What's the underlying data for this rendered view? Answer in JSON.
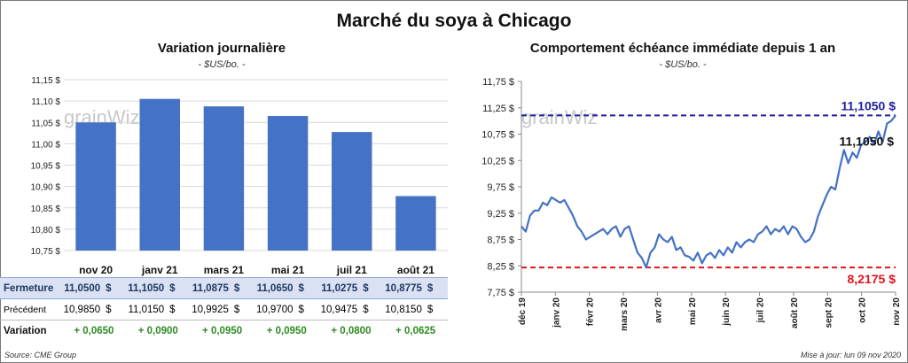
{
  "title": "Marché du soya à Chicago",
  "watermark": "grainWiz",
  "source": "Source: CME Group",
  "updated": "Mise à jour: lun 09 nov 2020",
  "colors": {
    "bar": "#4472c4",
    "line": "#4472c4",
    "high": "#1f1f9f",
    "low": "#e0141e",
    "positive": "#2e8b22"
  },
  "table": {
    "rows": [
      {
        "label": "Fermeture",
        "currency": "$",
        "values": [
          "11,0500",
          "11,1050",
          "11,0875",
          "11,0650",
          "11,0275",
          "10,8775"
        ]
      },
      {
        "label": "Précédent",
        "currency": "$",
        "values": [
          "10,9850",
          "11,0150",
          "10,9925",
          "10,9700",
          "10,9475",
          "10,8150"
        ]
      },
      {
        "label": "Variation",
        "values": [
          "+ 0,0650",
          "+ 0,0900",
          "+ 0,0950",
          "+ 0,0950",
          "+ 0,0800",
          "+ 0,0625"
        ]
      }
    ]
  },
  "chart_data": [
    {
      "type": "bar",
      "title": "Variation journalière",
      "unit": "- $US/bo. -",
      "categories": [
        "nov 20",
        "janv 21",
        "mars 21",
        "mai 21",
        "juil 21",
        "août 21"
      ],
      "values": [
        11.05,
        11.105,
        11.0875,
        11.065,
        11.0275,
        10.8775
      ],
      "ylim": [
        10.75,
        11.15
      ],
      "yticks": [
        10.75,
        10.8,
        10.85,
        10.9,
        10.95,
        11.0,
        11.05,
        11.1,
        11.15
      ],
      "ytick_labels": [
        "10,75 $",
        "10,80 $",
        "10,85 $",
        "10,90 $",
        "10,95 $",
        "11,00 $",
        "11,05 $",
        "11,10 $",
        "11,15 $"
      ]
    },
    {
      "type": "line",
      "title": "Comportement  échéance immédiate depuis 1 an",
      "unit": "- $US/bo. -",
      "ylim": [
        7.75,
        11.75
      ],
      "yticks": [
        7.75,
        8.25,
        8.75,
        9.25,
        9.75,
        10.25,
        10.75,
        11.25,
        11.75
      ],
      "ytick_labels": [
        "7,75 $",
        "8,25 $",
        "8,75 $",
        "9,25 $",
        "9,75 $",
        "10,25 $",
        "10,75 $",
        "11,25 $",
        "11,75 $"
      ],
      "x_labels": [
        "déc 19",
        "janv 20",
        "févr 20",
        "mars 20",
        "avr 20",
        "mai 20",
        "juin 20",
        "juil 20",
        "août 20",
        "sept 20",
        "oct 20",
        "nov 20"
      ],
      "high": {
        "value": 11.105,
        "label": "11,1050 $"
      },
      "low": {
        "value": 8.2175,
        "label": "8,2175 $"
      },
      "last_label": "11,1050 $",
      "series": [
        {
          "name": "Échéance immédiate",
          "values": [
            9.0,
            8.9,
            9.2,
            9.3,
            9.3,
            9.45,
            9.4,
            9.55,
            9.5,
            9.45,
            9.5,
            9.35,
            9.2,
            9.0,
            8.9,
            8.75,
            8.8,
            8.85,
            8.9,
            8.95,
            8.85,
            8.95,
            9.0,
            8.8,
            8.95,
            9.0,
            8.75,
            8.5,
            8.4,
            8.22,
            8.5,
            8.6,
            8.85,
            8.75,
            8.7,
            8.8,
            8.55,
            8.6,
            8.45,
            8.42,
            8.35,
            8.5,
            8.3,
            8.45,
            8.5,
            8.4,
            8.55,
            8.45,
            8.6,
            8.5,
            8.7,
            8.6,
            8.7,
            8.75,
            8.7,
            8.85,
            8.9,
            9.0,
            8.85,
            8.95,
            8.9,
            9.0,
            8.85,
            9.0,
            8.95,
            8.8,
            8.7,
            8.75,
            8.9,
            9.2,
            9.4,
            9.6,
            9.75,
            9.7,
            10.1,
            10.45,
            10.2,
            10.4,
            10.3,
            10.55,
            10.6,
            10.7,
            10.55,
            10.8,
            10.6,
            10.95,
            11.0,
            11.105
          ]
        }
      ]
    }
  ]
}
